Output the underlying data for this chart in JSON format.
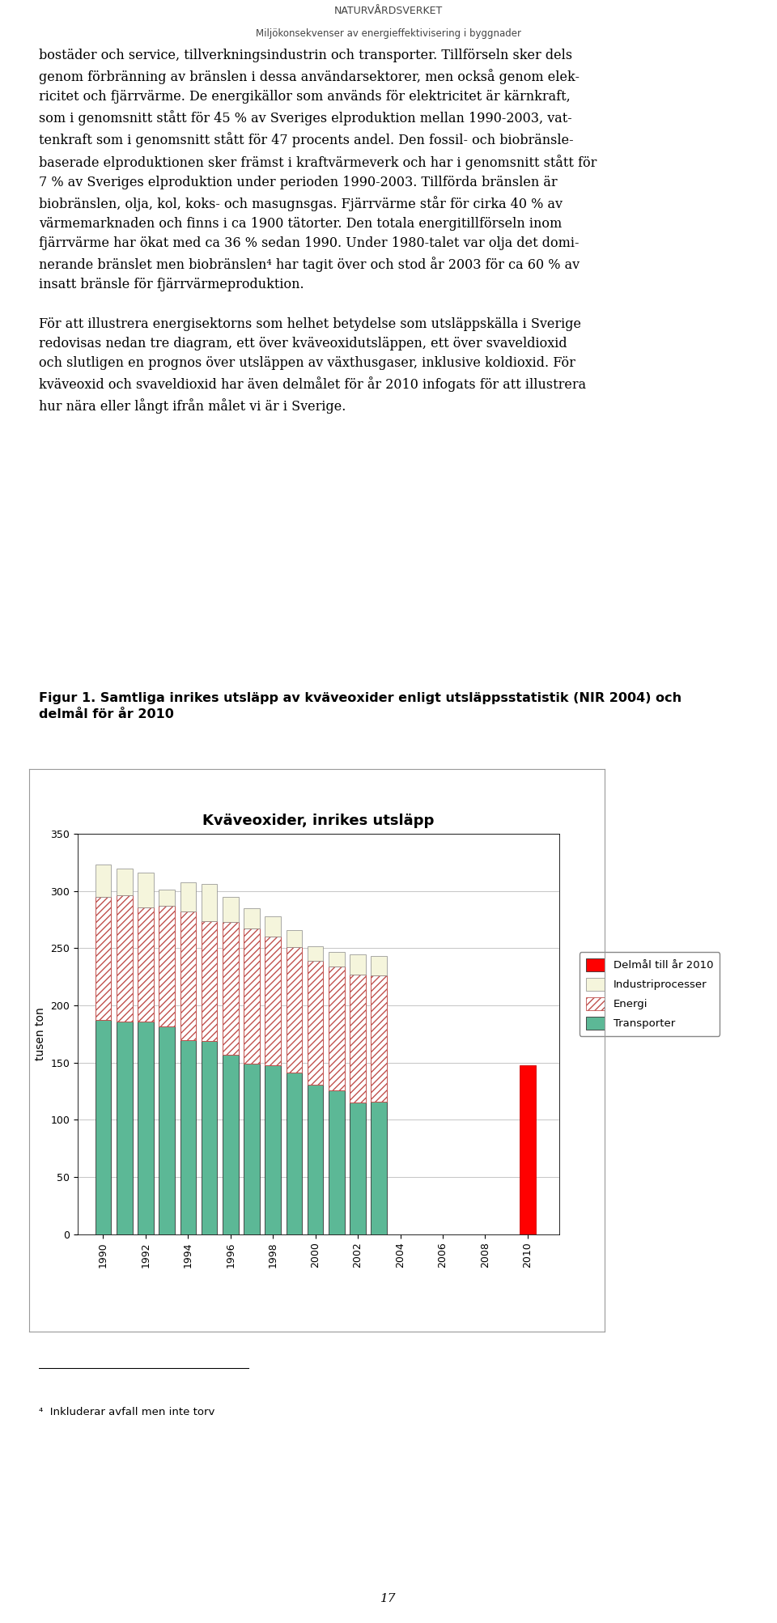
{
  "title": "Kväveoxider, inrikes utsläpp",
  "ylabel": "tusen ton",
  "ylim": [
    0,
    350
  ],
  "yticks": [
    0,
    50,
    100,
    150,
    200,
    250,
    300,
    350
  ],
  "years": [
    1990,
    1991,
    1992,
    1993,
    1994,
    1995,
    1996,
    1997,
    1998,
    1999,
    2000,
    2001,
    2002,
    2003
  ],
  "transporter": [
    187,
    186,
    186,
    182,
    170,
    169,
    157,
    149,
    148,
    141,
    131,
    126,
    115,
    116
  ],
  "energi": [
    108,
    110,
    100,
    105,
    112,
    105,
    116,
    118,
    112,
    110,
    108,
    108,
    112,
    110
  ],
  "industri": [
    28,
    24,
    30,
    14,
    26,
    32,
    22,
    18,
    18,
    15,
    13,
    13,
    18,
    17
  ],
  "delmal_2010": 148,
  "delmal_year": 2010,
  "transporter_color": "#5CB896",
  "energi_hatch_color": "#C0504D",
  "industri_color": "#FFFFCC",
  "delmal_color": "#FF0000",
  "header_line1": "NATURVÅRDSVERKET",
  "header_line2": "Miljökonsekvenser av energieffektivisering i byggnader",
  "page_number": "17",
  "fig_width": 9.6,
  "fig_height": 20.05,
  "body_fontsize": 11.5,
  "caption_fontsize": 11.5,
  "header_fontsize1": 9,
  "header_fontsize2": 8.5,
  "chart_title_fontsize": 13,
  "axis_label_fontsize": 10,
  "tick_fontsize": 9,
  "legend_fontsize": 9.5
}
